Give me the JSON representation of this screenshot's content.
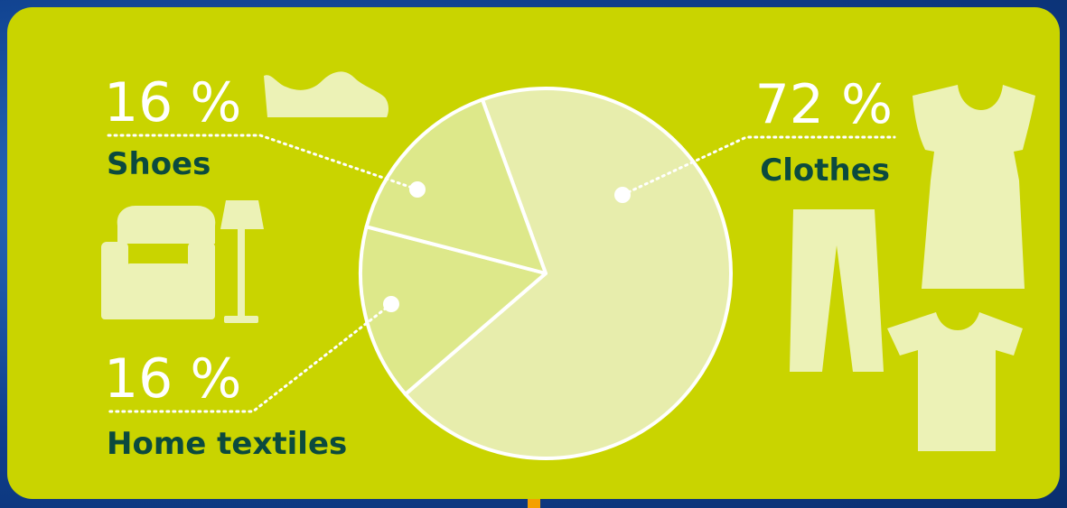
{
  "colors": {
    "card": "#c9d400",
    "slice_major": "#e7edac",
    "slice_minor": "#dde88a",
    "outline": "#ffffff",
    "label_text": "#0b4a3e",
    "percent_text": "#ffffff",
    "icon_fill": "#ecf2b6",
    "background": "#0f3f8c"
  },
  "chart_data": {
    "type": "pie",
    "categories": [
      "Clothes",
      "Home textiles",
      "Shoes"
    ],
    "values": [
      72,
      16,
      16
    ],
    "value_labels": [
      "72 %",
      "16 %",
      "16 %"
    ],
    "title": "",
    "legend": "none",
    "icons": {
      "Clothes": [
        "dress-icon",
        "trousers-icon",
        "tshirt-icon"
      ],
      "Home textiles": [
        "armchair-icon",
        "floor-lamp-icon"
      ],
      "Shoes": [
        "shoe-icon"
      ]
    }
  }
}
